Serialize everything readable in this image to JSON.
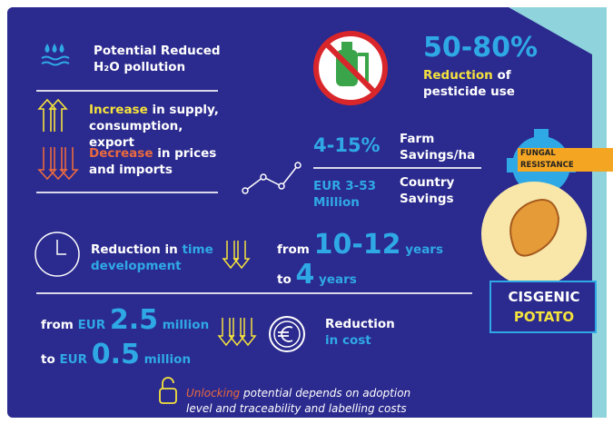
{
  "water": {
    "line1": "Potential Reduced",
    "line2": "H₂O pollution"
  },
  "supply": {
    "highlight": "Increase",
    "text": "in supply, consumption, export"
  },
  "prices": {
    "highlight": "Decrease",
    "text": "in prices and imports"
  },
  "pesticide": {
    "range": "50-80%",
    "highlight": "Reduction",
    "text": "of pesticide use"
  },
  "farm": {
    "value": "4-15%",
    "label": "Farm Savings/ha"
  },
  "country": {
    "value": "EUR 3-53 Million",
    "label": "Country Savings"
  },
  "fungal": "FUNGAL RESISTANCE",
  "potato": {
    "line1": "CISGENIC",
    "line2": "POTATO"
  },
  "time": {
    "text": "Reduction in",
    "highlight": "time development"
  },
  "years": {
    "from": "from",
    "big1": "10-12",
    "unit1": "years",
    "to": "to",
    "big2": "4",
    "unit2": "years"
  },
  "cost_range": {
    "from": "from",
    "cur1": "EUR",
    "big1": "2.5",
    "unit1": "million",
    "to": "to",
    "cur2": "EUR",
    "big2": "0.5",
    "unit2": "million"
  },
  "cost": {
    "text": "Reduction",
    "highlight": "in cost"
  },
  "footer": {
    "highlight": "Unlocking",
    "text": "potential depends on adoption level and traceability and labelling costs"
  }
}
